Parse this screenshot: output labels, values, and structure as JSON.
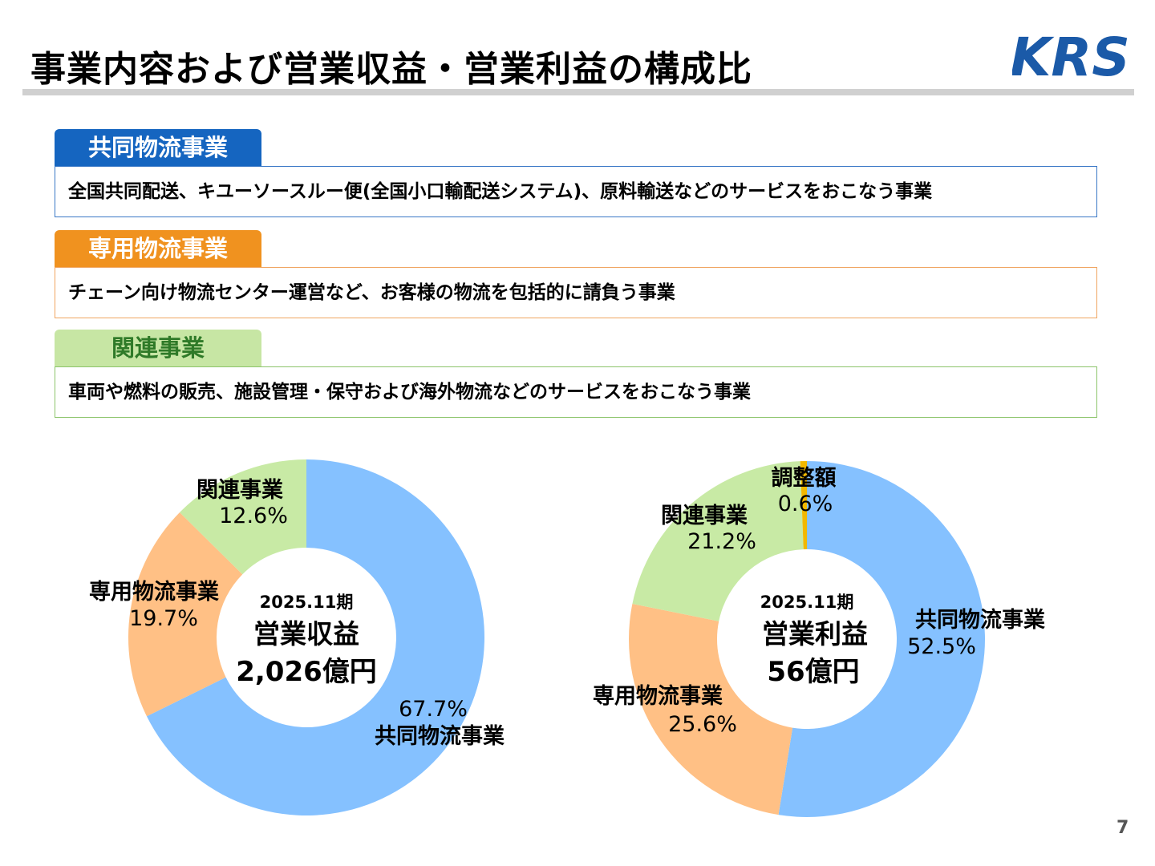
{
  "header": {
    "title": "事業内容および営業収益・営業利益の構成比",
    "logo_text": "KRS"
  },
  "segments": [
    {
      "label": "共同物流事業",
      "description": "全国共同配送、キユーソースルー便(全国小口輸配送システム)、原料輸送などのサービスをおこなう事業"
    },
    {
      "label": "専用物流事業",
      "description": "チェーン向け物流センター運営など、お客様の物流を包括的に請負う事業"
    },
    {
      "label": "関連事業",
      "description": "車両や燃料の販売、施設管理・保守および海外物流などのサービスをおこなう事業"
    }
  ],
  "colors": {
    "kyodo": "#85c1ff",
    "senyo": "#ffc085",
    "kanren": "#c8eaa5",
    "chosei": "#f2b800",
    "logo": "#1b5aa8"
  },
  "chart_data": [
    {
      "type": "pie",
      "center_period": "2025.11期",
      "center_title": "営業収益",
      "center_value": "2,026億円",
      "slices": [
        {
          "name": "共同物流事業",
          "value": 67.7,
          "label": "67.7%"
        },
        {
          "name": "専用物流事業",
          "value": 19.7,
          "label": "19.7%"
        },
        {
          "name": "関連事業",
          "value": 12.6,
          "label": "12.6%"
        }
      ]
    },
    {
      "type": "pie",
      "center_period": "2025.11期",
      "center_title": "営業利益",
      "center_value": "56億円",
      "slices": [
        {
          "name": "共同物流事業",
          "value": 52.5,
          "label": "52.5%"
        },
        {
          "name": "専用物流事業",
          "value": 25.6,
          "label": "25.6%"
        },
        {
          "name": "関連事業",
          "value": 21.2,
          "label": "21.2%"
        },
        {
          "name": "調整額",
          "value": 0.6,
          "label": "0.6%"
        }
      ]
    }
  ],
  "page_number": "7"
}
